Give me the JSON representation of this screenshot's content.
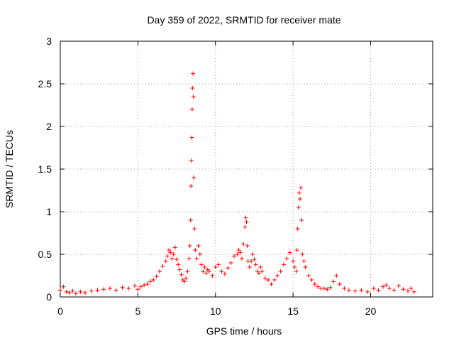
{
  "chart_data": {
    "type": "scatter",
    "title": "Day 359 of 2022, SRMTID for receiver mate",
    "xlabel": "GPS time / hours",
    "ylabel": "SRMTID / TECUs",
    "xlim": [
      0,
      24
    ],
    "ylim": [
      0,
      3
    ],
    "xticks": [
      0,
      5,
      10,
      15,
      20
    ],
    "xtick_labels": [
      "0",
      "5",
      "10",
      "15",
      "20"
    ],
    "yticks": [
      0,
      0.5,
      1,
      1.5,
      2,
      2.5,
      3
    ],
    "ytick_labels": [
      "0",
      "0.5",
      "1",
      "1.5",
      "2",
      "2.5",
      "3"
    ],
    "grid": true,
    "marker": "+",
    "color": "#ff0000",
    "series": [
      {
        "name": "SRMTID",
        "x": [
          0.0,
          0.2,
          0.4,
          0.6,
          0.8,
          1.0,
          1.3,
          1.6,
          2.0,
          2.4,
          2.8,
          3.2,
          3.6,
          4.0,
          4.4,
          4.8,
          5.0,
          5.2,
          5.4,
          5.6,
          5.8,
          6.0,
          6.2,
          6.4,
          6.6,
          6.8,
          6.9,
          7.0,
          7.1,
          7.2,
          7.3,
          7.4,
          7.5,
          7.6,
          7.7,
          7.8,
          7.9,
          8.0,
          8.1,
          8.2,
          8.3,
          8.35,
          8.4,
          8.42,
          8.45,
          8.48,
          8.5,
          8.52,
          8.55,
          8.58,
          8.6,
          8.65,
          8.7,
          8.8,
          8.9,
          9.0,
          9.1,
          9.2,
          9.3,
          9.4,
          9.5,
          9.6,
          9.8,
          10.0,
          10.2,
          10.4,
          10.6,
          10.8,
          11.0,
          11.2,
          11.4,
          11.5,
          11.6,
          11.7,
          11.8,
          11.9,
          11.95,
          12.0,
          12.05,
          12.1,
          12.2,
          12.3,
          12.4,
          12.5,
          12.6,
          12.7,
          12.8,
          12.9,
          13.0,
          13.2,
          13.4,
          13.6,
          13.8,
          14.0,
          14.2,
          14.4,
          14.6,
          14.8,
          15.0,
          15.1,
          15.2,
          15.25,
          15.3,
          15.35,
          15.4,
          15.45,
          15.5,
          15.55,
          15.6,
          15.7,
          15.8,
          16.0,
          16.2,
          16.4,
          16.6,
          16.8,
          17.0,
          17.2,
          17.4,
          17.6,
          17.8,
          18.0,
          18.3,
          18.6,
          19.0,
          19.4,
          19.8,
          20.2,
          20.5,
          20.8,
          21.0,
          21.2,
          21.5,
          21.8,
          22.1,
          22.4,
          22.6,
          22.8
        ],
        "y": [
          0.08,
          0.12,
          0.06,
          0.05,
          0.07,
          0.04,
          0.06,
          0.05,
          0.07,
          0.08,
          0.09,
          0.1,
          0.08,
          0.11,
          0.1,
          0.13,
          0.09,
          0.12,
          0.14,
          0.15,
          0.18,
          0.2,
          0.24,
          0.3,
          0.36,
          0.42,
          0.48,
          0.55,
          0.52,
          0.45,
          0.5,
          0.58,
          0.44,
          0.38,
          0.32,
          0.26,
          0.2,
          0.18,
          0.22,
          0.3,
          0.45,
          0.6,
          0.9,
          1.3,
          1.6,
          1.87,
          2.2,
          2.45,
          2.62,
          2.35,
          1.4,
          0.8,
          0.55,
          0.45,
          0.6,
          0.5,
          0.38,
          0.3,
          0.35,
          0.28,
          0.32,
          0.3,
          0.25,
          0.35,
          0.38,
          0.3,
          0.27,
          0.34,
          0.4,
          0.48,
          0.5,
          0.55,
          0.52,
          0.45,
          0.62,
          0.82,
          0.93,
          0.88,
          0.6,
          0.42,
          0.35,
          0.42,
          0.5,
          0.44,
          0.38,
          0.3,
          0.28,
          0.35,
          0.3,
          0.22,
          0.2,
          0.15,
          0.2,
          0.25,
          0.3,
          0.38,
          0.45,
          0.52,
          0.42,
          0.35,
          0.3,
          0.55,
          0.8,
          1.05,
          1.22,
          1.15,
          1.28,
          0.9,
          0.5,
          0.42,
          0.35,
          0.25,
          0.2,
          0.15,
          0.12,
          0.1,
          0.1,
          0.09,
          0.11,
          0.18,
          0.25,
          0.15,
          0.1,
          0.08,
          0.07,
          0.08,
          0.06,
          0.1,
          0.08,
          0.12,
          0.14,
          0.1,
          0.08,
          0.13,
          0.09,
          0.07,
          0.1,
          0.06
        ]
      }
    ]
  }
}
